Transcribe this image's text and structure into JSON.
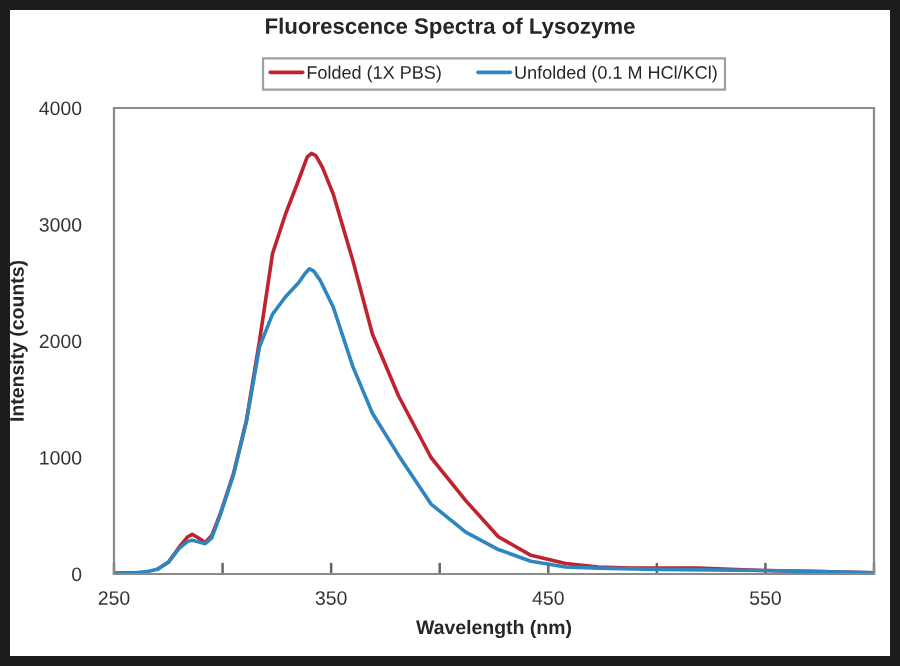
{
  "chart_data": {
    "type": "line",
    "title": "Fluorescence Spectra of Lysozyme",
    "xlabel": "Wavelength (nm)",
    "ylabel": "Intensity (counts)",
    "series": [
      {
        "name": "Folded (1X PBS)",
        "color": "#c0232e",
        "x": [
          270,
          275,
          280,
          284,
          286,
          288,
          292,
          295,
          299,
          305,
          311,
          317,
          323,
          329,
          335,
          339,
          341,
          343,
          346,
          351,
          360,
          369,
          381,
          396,
          412,
          427,
          442,
          458,
          473,
          488,
          519,
          549,
          575,
          600
        ],
        "values": [
          40,
          100,
          230,
          320,
          340,
          320,
          270,
          330,
          520,
          860,
          1320,
          2000,
          2750,
          3090,
          3380,
          3580,
          3610,
          3590,
          3490,
          3260,
          2690,
          2060,
          1530,
          1000,
          630,
          320,
          160,
          90,
          60,
          50,
          50,
          30,
          20,
          10
        ]
      },
      {
        "name": "Unfolded (0.1 M HCl/KCl)",
        "color": "#2e86c1",
        "x": [
          250,
          260,
          265,
          270,
          275,
          280,
          284,
          286,
          288,
          292,
          295,
          299,
          305,
          311,
          317,
          323,
          329,
          335,
          338,
          340,
          342,
          345,
          351,
          360,
          369,
          381,
          396,
          412,
          427,
          442,
          458,
          473,
          500,
          550,
          575,
          600
        ],
        "values": [
          10,
          10,
          20,
          40,
          100,
          220,
          280,
          290,
          280,
          260,
          310,
          510,
          850,
          1310,
          1950,
          2230,
          2380,
          2500,
          2580,
          2620,
          2600,
          2520,
          2290,
          1780,
          1380,
          1020,
          600,
          360,
          210,
          110,
          60,
          50,
          40,
          30,
          20,
          10
        ]
      }
    ],
    "xlim": [
      250,
      600
    ],
    "xticks": [
      250,
      {
        "value": 300,
        "label": null
      },
      350,
      {
        "value": 400,
        "label": null
      },
      450,
      {
        "value": 500,
        "label": null
      },
      550,
      {
        "value": 600,
        "label": null
      }
    ],
    "ylim": [
      0,
      4000
    ],
    "yticks": [
      0,
      1000,
      2000,
      3000,
      4000
    ],
    "legend": "top",
    "grid": false
  }
}
